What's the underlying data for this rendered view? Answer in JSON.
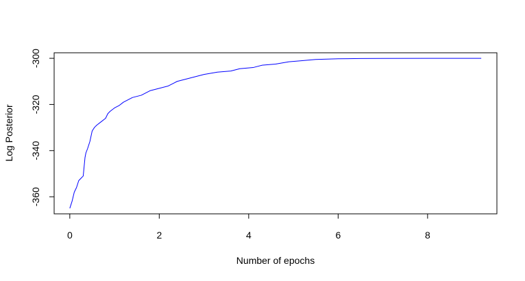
{
  "chart_data": {
    "type": "line",
    "title": "",
    "xlabel": "Number of epochs",
    "ylabel": "Log Posterior",
    "xlim": [
      -0.35,
      9.55
    ],
    "ylim": [
      -367.4,
      -297.6
    ],
    "xticks": [
      0,
      2,
      4,
      6,
      8
    ],
    "xtick_labels": [
      "0",
      "2",
      "4",
      "6",
      "8"
    ],
    "yticks": [
      -360,
      -340,
      -320,
      -300
    ],
    "ytick_labels": [
      "-360",
      "-340",
      "-320",
      "-300"
    ],
    "grid": false,
    "box": true,
    "series": [
      {
        "color": "#0000ff",
        "x": [
          0.0,
          0.05,
          0.1,
          0.15,
          0.2,
          0.25,
          0.3,
          0.32,
          0.34,
          0.36,
          0.4,
          0.45,
          0.5,
          0.55,
          0.6,
          0.7,
          0.8,
          0.85,
          0.9,
          1.0,
          1.1,
          1.2,
          1.3,
          1.4,
          1.6,
          1.8,
          2.0,
          2.2,
          2.4,
          2.6,
          2.8,
          3.0,
          3.3,
          3.6,
          3.8,
          4.1,
          4.3,
          4.6,
          4.9,
          5.2,
          5.5,
          6.0,
          6.5,
          7.0,
          8.0,
          9.2
        ],
        "y": [
          -365,
          -362,
          -358,
          -356,
          -353,
          -352,
          -351,
          -347,
          -343,
          -341,
          -339,
          -336,
          -331.5,
          -330,
          -329,
          -327.5,
          -326,
          -324,
          -323,
          -321.5,
          -320.5,
          -319,
          -318,
          -317,
          -316,
          -314,
          -313,
          -312,
          -310,
          -309,
          -308,
          -307,
          -306,
          -305.5,
          -304.5,
          -304,
          -303,
          -302.5,
          -301.5,
          -301,
          -300.5,
          -300.2,
          -300.1,
          -300.05,
          -300,
          -300
        ]
      }
    ]
  }
}
